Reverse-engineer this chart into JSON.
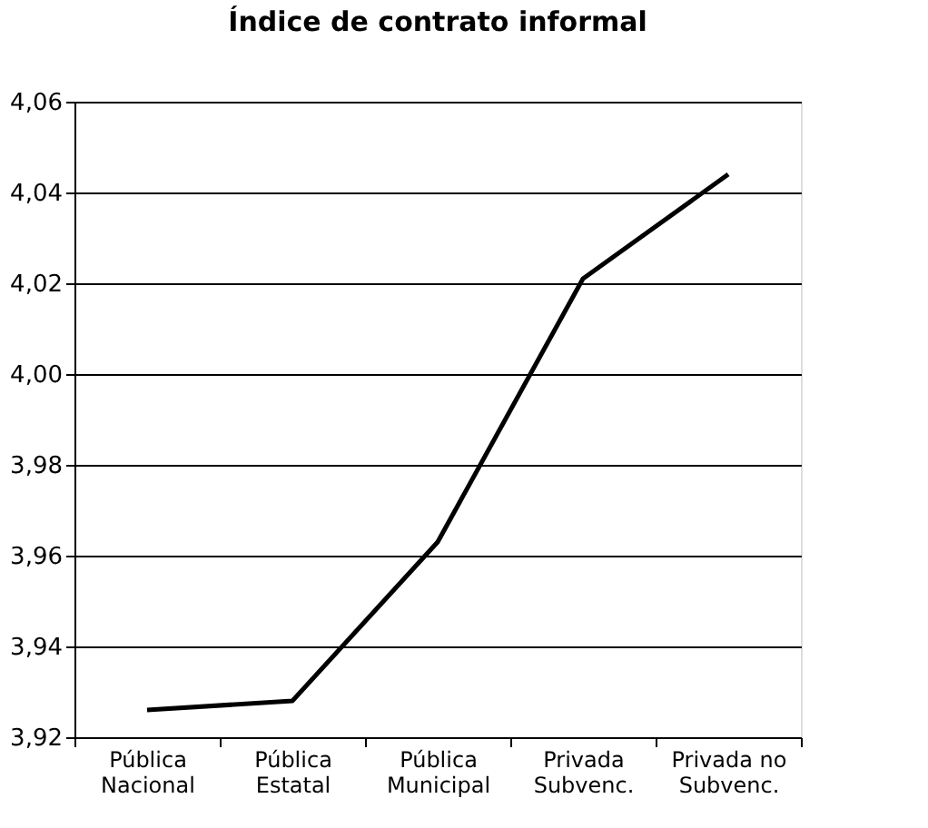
{
  "chart_data": {
    "type": "line",
    "title": "Índice de contrato informal",
    "categories": [
      "Pública\nNacional",
      "Pública\nEstatal",
      "Pública\nMunicipal",
      "Privada\nSubvenc.",
      "Privada no\nSubvenc."
    ],
    "series": [
      {
        "color": "#000000",
        "values": [
          3.926,
          3.928,
          3.963,
          4.021,
          4.044
        ]
      }
    ],
    "ylim": [
      3.92,
      4.06
    ],
    "yticks": [
      {
        "value": 3.92,
        "label": "3,92"
      },
      {
        "value": 3.94,
        "label": "3,94"
      },
      {
        "value": 3.96,
        "label": "3,96"
      },
      {
        "value": 3.98,
        "label": "3,98"
      },
      {
        "value": 4.0,
        "label": "4,00"
      },
      {
        "value": 4.02,
        "label": "4,02"
      },
      {
        "value": 4.04,
        "label": "4,04"
      },
      {
        "value": 4.06,
        "label": "4,06"
      }
    ],
    "grid": "y",
    "marker": "none",
    "line_style": "solid"
  }
}
